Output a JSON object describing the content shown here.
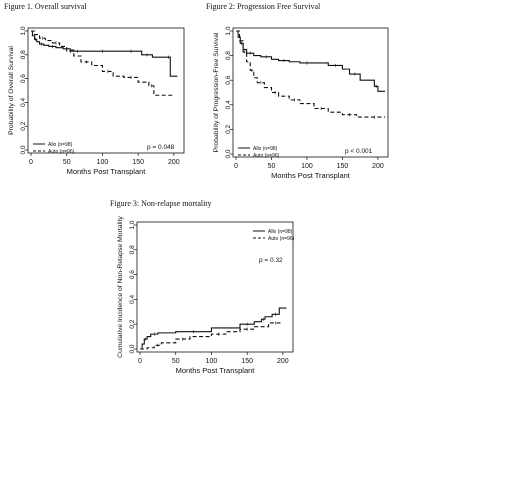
{
  "figures": [
    {
      "title": "Figure 1. Overall survival",
      "chart_data": {
        "type": "line",
        "xlabel": "Months Post Transplant",
        "ylabel": "Probability of Overall Survival",
        "xlim": [
          0,
          210
        ],
        "ylim": [
          0,
          1.0
        ],
        "xticks": [
          "0",
          "50",
          "100",
          "150",
          "200"
        ],
        "yticks": [
          "0.0",
          "0.2",
          "0.4",
          "0.6",
          "0.8",
          "1.0"
        ],
        "grid": false,
        "legend_position": "bottom-left",
        "annotation": "p = 0.048",
        "series": [
          {
            "name": "Allo (n=98)",
            "style": "solid",
            "x": [
              0,
              2,
              5,
              8,
              12,
              18,
              25,
              35,
              45,
              55,
              60,
              70,
              90,
              110,
              130,
              150,
              155,
              170,
              190,
              195,
              205
            ],
            "y": [
              1.0,
              0.96,
              0.93,
              0.91,
              0.89,
              0.88,
              0.87,
              0.86,
              0.85,
              0.84,
              0.83,
              0.83,
              0.83,
              0.83,
              0.83,
              0.83,
              0.8,
              0.78,
              0.78,
              0.62,
              0.62
            ]
          },
          {
            "name": "Auto (n=96)",
            "style": "dashed",
            "x": [
              0,
              5,
              12,
              20,
              30,
              40,
              50,
              60,
              70,
              85,
              100,
              115,
              130,
              150,
              165,
              172,
              200
            ],
            "y": [
              1.0,
              0.97,
              0.94,
              0.92,
              0.9,
              0.87,
              0.83,
              0.79,
              0.74,
              0.71,
              0.66,
              0.62,
              0.61,
              0.57,
              0.54,
              0.46,
              0.46
            ]
          }
        ]
      }
    },
    {
      "title": "Figure 2: Progression Free Survival",
      "chart_data": {
        "type": "line",
        "xlabel": "Months Post Transplant",
        "ylabel": "Probability of Progression-Free Survival",
        "xlim": [
          0,
          210
        ],
        "ylim": [
          0,
          1.0
        ],
        "xticks": [
          "0",
          "50",
          "100",
          "150",
          "200"
        ],
        "yticks": [
          "0.0",
          "0.2",
          "0.4",
          "0.6",
          "0.8",
          "1.0"
        ],
        "grid": false,
        "legend_position": "bottom-left",
        "annotation": "p < 0.001",
        "series": [
          {
            "name": "Allo (n=98)",
            "style": "solid",
            "x": [
              0,
              3,
              6,
              10,
              15,
              25,
              35,
              50,
              60,
              75,
              90,
              110,
              130,
              150,
              160,
              175,
              195,
              200,
              210
            ],
            "y": [
              1.0,
              0.95,
              0.9,
              0.85,
              0.82,
              0.8,
              0.79,
              0.77,
              0.76,
              0.75,
              0.74,
              0.74,
              0.72,
              0.69,
              0.65,
              0.6,
              0.55,
              0.51,
              0.51
            ]
          },
          {
            "name": "Auto (n=96)",
            "style": "dashed",
            "x": [
              0,
              5,
              10,
              15,
              20,
              25,
              30,
              40,
              50,
              60,
              75,
              90,
              110,
              130,
              150,
              170,
              180,
              210
            ],
            "y": [
              1.0,
              0.92,
              0.83,
              0.75,
              0.68,
              0.62,
              0.58,
              0.54,
              0.5,
              0.47,
              0.44,
              0.41,
              0.37,
              0.34,
              0.32,
              0.3,
              0.3,
              0.3
            ]
          }
        ]
      }
    },
    {
      "title": "Figure 3: Non-relapse mortality",
      "chart_data": {
        "type": "line",
        "xlabel": "Months Post Transplant",
        "ylabel": "Cumulative Incidence of Non-Relapse Mortality",
        "xlim": [
          0,
          210
        ],
        "ylim": [
          0,
          1.0
        ],
        "xticks": [
          "0",
          "50",
          "100",
          "150",
          "200"
        ],
        "yticks": [
          "0.0",
          "0.2",
          "0.4",
          "0.6",
          "0.8",
          "1.0"
        ],
        "grid": false,
        "legend_position": "top-right",
        "annotation": "p = 0.32",
        "series": [
          {
            "name": "Allo (n=98)",
            "style": "solid",
            "x": [
              0,
              3,
              6,
              10,
              15,
              25,
              50,
              100,
              140,
              160,
              170,
              175,
              185,
              195,
              205
            ],
            "y": [
              0.0,
              0.04,
              0.08,
              0.1,
              0.12,
              0.13,
              0.14,
              0.17,
              0.2,
              0.22,
              0.24,
              0.26,
              0.28,
              0.33,
              0.33
            ]
          },
          {
            "name": "Auto (n=96)",
            "style": "dashed",
            "x": [
              0,
              10,
              20,
              30,
              50,
              70,
              100,
              120,
              140,
              160,
              180,
              200
            ],
            "y": [
              0.0,
              0.01,
              0.03,
              0.05,
              0.08,
              0.1,
              0.12,
              0.14,
              0.16,
              0.18,
              0.21,
              0.21
            ]
          }
        ]
      }
    }
  ]
}
